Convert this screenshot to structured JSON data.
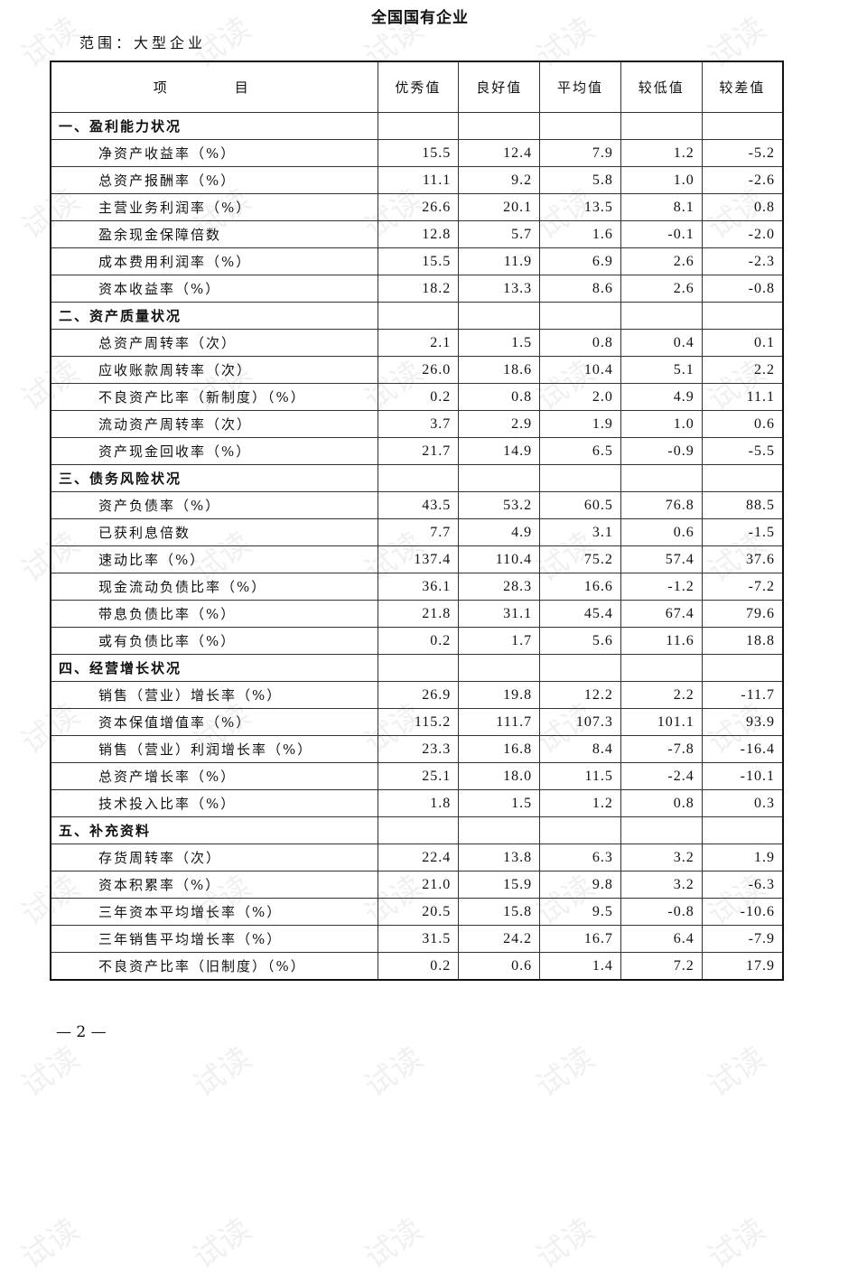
{
  "title": "全国国有企业",
  "scope": "范围：大型企业",
  "watermark": "试读",
  "columns": [
    "项　目",
    "优秀值",
    "良好值",
    "平均值",
    "较低值",
    "较差值"
  ],
  "rows": [
    {
      "type": "section",
      "label": "一、盈利能力状况"
    },
    {
      "label": "净资产收益率（%）",
      "values": [
        "15.5",
        "12.4",
        "7.9",
        "1.2",
        "-5.2"
      ]
    },
    {
      "label": "总资产报酬率（%）",
      "values": [
        "11.1",
        "9.2",
        "5.8",
        "1.0",
        "-2.6"
      ]
    },
    {
      "label": "主营业务利润率（%）",
      "values": [
        "26.6",
        "20.1",
        "13.5",
        "8.1",
        "0.8"
      ]
    },
    {
      "label": "盈余现金保障倍数",
      "values": [
        "12.8",
        "5.7",
        "1.6",
        "-0.1",
        "-2.0"
      ]
    },
    {
      "label": "成本费用利润率（%）",
      "values": [
        "15.5",
        "11.9",
        "6.9",
        "2.6",
        "-2.3"
      ]
    },
    {
      "label": "资本收益率（%）",
      "values": [
        "18.2",
        "13.3",
        "8.6",
        "2.6",
        "-0.8"
      ]
    },
    {
      "type": "section",
      "label": "二、资产质量状况"
    },
    {
      "label": "总资产周转率（次）",
      "values": [
        "2.1",
        "1.5",
        "0.8",
        "0.4",
        "0.1"
      ]
    },
    {
      "label": "应收账款周转率（次）",
      "values": [
        "26.0",
        "18.6",
        "10.4",
        "5.1",
        "2.2"
      ]
    },
    {
      "label": "不良资产比率（新制度）（%）",
      "values": [
        "0.2",
        "0.8",
        "2.0",
        "4.9",
        "11.1"
      ]
    },
    {
      "label": "流动资产周转率（次）",
      "values": [
        "3.7",
        "2.9",
        "1.9",
        "1.0",
        "0.6"
      ]
    },
    {
      "label": "资产现金回收率（%）",
      "values": [
        "21.7",
        "14.9",
        "6.5",
        "-0.9",
        "-5.5"
      ]
    },
    {
      "type": "section",
      "label": "三、债务风险状况"
    },
    {
      "label": "资产负债率（%）",
      "values": [
        "43.5",
        "53.2",
        "60.5",
        "76.8",
        "88.5"
      ]
    },
    {
      "label": "已获利息倍数",
      "values": [
        "7.7",
        "4.9",
        "3.1",
        "0.6",
        "-1.5"
      ]
    },
    {
      "label": "速动比率（%）",
      "values": [
        "137.4",
        "110.4",
        "75.2",
        "57.4",
        "37.6"
      ]
    },
    {
      "label": "现金流动负债比率（%）",
      "values": [
        "36.1",
        "28.3",
        "16.6",
        "-1.2",
        "-7.2"
      ]
    },
    {
      "label": "带息负债比率（%）",
      "values": [
        "21.8",
        "31.1",
        "45.4",
        "67.4",
        "79.6"
      ]
    },
    {
      "label": "或有负债比率（%）",
      "values": [
        "0.2",
        "1.7",
        "5.6",
        "11.6",
        "18.8"
      ]
    },
    {
      "type": "section",
      "label": "四、经营增长状况"
    },
    {
      "label": "销售（营业）增长率（%）",
      "values": [
        "26.9",
        "19.8",
        "12.2",
        "2.2",
        "-11.7"
      ]
    },
    {
      "label": "资本保值增值率（%）",
      "values": [
        "115.2",
        "111.7",
        "107.3",
        "101.1",
        "93.9"
      ]
    },
    {
      "label": "销售（营业）利润增长率（%）",
      "values": [
        "23.3",
        "16.8",
        "8.4",
        "-7.8",
        "-16.4"
      ]
    },
    {
      "label": "总资产增长率（%）",
      "values": [
        "25.1",
        "18.0",
        "11.5",
        "-2.4",
        "-10.1"
      ]
    },
    {
      "label": "技术投入比率（%）",
      "values": [
        "1.8",
        "1.5",
        "1.2",
        "0.8",
        "0.3"
      ]
    },
    {
      "type": "section",
      "label": "五、补充资料"
    },
    {
      "label": "存货周转率（次）",
      "values": [
        "22.4",
        "13.8",
        "6.3",
        "3.2",
        "1.9"
      ]
    },
    {
      "label": "资本积累率（%）",
      "values": [
        "21.0",
        "15.9",
        "9.8",
        "3.2",
        "-6.3"
      ]
    },
    {
      "label": "三年资本平均增长率（%）",
      "values": [
        "20.5",
        "15.8",
        "9.5",
        "-0.8",
        "-10.6"
      ]
    },
    {
      "label": "三年销售平均增长率（%）",
      "values": [
        "31.5",
        "24.2",
        "16.7",
        "6.4",
        "-7.9"
      ]
    },
    {
      "label": "不良资产比率（旧制度）（%）",
      "values": [
        "0.2",
        "0.6",
        "1.4",
        "7.2",
        "17.9"
      ]
    }
  ],
  "page_number": "— 2 —"
}
